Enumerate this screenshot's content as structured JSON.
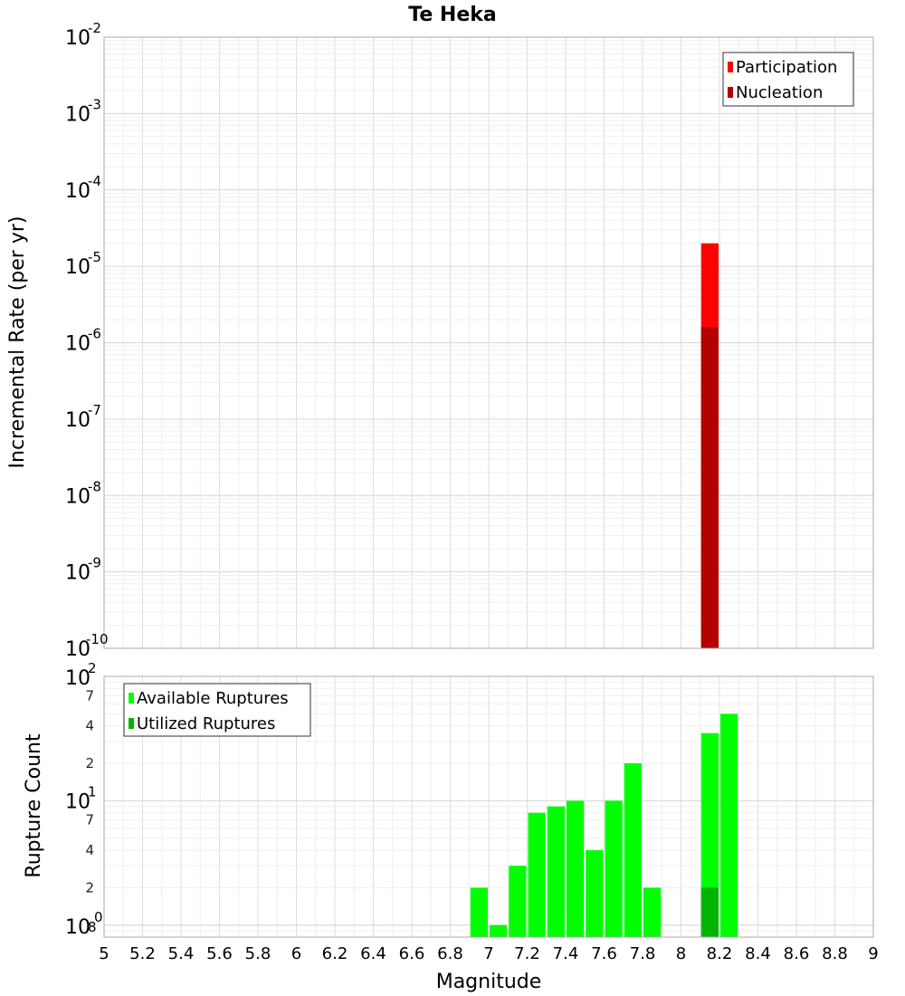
{
  "title": "Te Heka",
  "xlabel": "Magnitude",
  "colors": {
    "participation": "#ff0000",
    "nucleation": "#b40000",
    "available": "#00ff00",
    "utilized": "#00b400"
  },
  "chart_data": [
    {
      "type": "bar",
      "panel": "top",
      "ylabel": "Incremental Rate (per yr)",
      "yscale": "log",
      "ylim": [
        1e-10,
        0.01
      ],
      "xlim": [
        5,
        9
      ],
      "grid": true,
      "legend_position": "top-right",
      "y_tick_labels": [
        {
          "base": "10",
          "exp": "-2"
        },
        {
          "base": "10",
          "exp": "-3"
        },
        {
          "base": "10",
          "exp": "-4"
        },
        {
          "base": "10",
          "exp": "-5"
        },
        {
          "base": "10",
          "exp": "-6"
        },
        {
          "base": "10",
          "exp": "-7"
        },
        {
          "base": "10",
          "exp": "-8"
        },
        {
          "base": "10",
          "exp": "-9"
        },
        {
          "base": "10",
          "exp": "-10"
        }
      ],
      "series": [
        {
          "name": "Participation",
          "x": [
            8.15
          ],
          "values": [
            2e-05
          ]
        },
        {
          "name": "Nucleation",
          "x": [
            8.15
          ],
          "values": [
            1.6e-06
          ]
        }
      ]
    },
    {
      "type": "bar",
      "panel": "bottom",
      "ylabel": "Rupture Count",
      "yscale": "log",
      "ylim": [
        0.8,
        100
      ],
      "xlim": [
        5,
        9
      ],
      "grid": true,
      "legend_position": "top-left",
      "y_tick_labels": [
        {
          "base": "10",
          "exp": "2"
        },
        {
          "base": "10",
          "exp": "1"
        },
        {
          "base": "10",
          "exp": "0"
        },
        {
          "base": "",
          "exp": "8"
        }
      ],
      "y_minor_labels": [
        "7",
        "4",
        "2",
        "7",
        "4",
        "2"
      ],
      "series": [
        {
          "name": "Available Ruptures",
          "x": [
            6.95,
            7.05,
            7.15,
            7.25,
            7.35,
            7.45,
            7.55,
            7.65,
            7.75,
            7.85,
            8.15,
            8.25
          ],
          "values": [
            2,
            1,
            3,
            8,
            9,
            10,
            4,
            10,
            20,
            2,
            35,
            50
          ]
        },
        {
          "name": "Utilized Ruptures",
          "x": [
            8.15
          ],
          "values": [
            2
          ]
        }
      ]
    }
  ],
  "x_ticks": [
    "5",
    "5.2",
    "5.4",
    "5.6",
    "5.8",
    "6",
    "6.2",
    "6.4",
    "6.6",
    "6.8",
    "7",
    "7.2",
    "7.4",
    "7.6",
    "7.8",
    "8",
    "8.2",
    "8.4",
    "8.6",
    "8.8",
    "9"
  ]
}
